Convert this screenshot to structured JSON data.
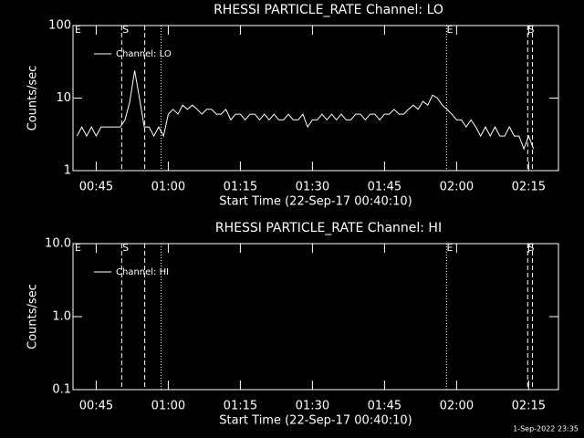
{
  "chart_data": [
    {
      "type": "line",
      "title": "RHESSI PARTICLE_RATE Channel: LO",
      "xlabel": "Start Time (22-Sep-17 00:40:10)",
      "ylabel": "Counts/sec",
      "yscale": "log",
      "ylim": [
        1,
        100
      ],
      "yticks": [
        1,
        10,
        100
      ],
      "xlim": [
        40.17,
        141.2
      ],
      "xticks": [
        {
          "value": 45,
          "label": "00:45"
        },
        {
          "value": 60,
          "label": "01:00"
        },
        {
          "value": 75,
          "label": "01:15"
        },
        {
          "value": 90,
          "label": "01:30"
        },
        {
          "value": 105,
          "label": "01:45"
        },
        {
          "value": 120,
          "label": "02:00"
        },
        {
          "value": 135,
          "label": "02:15"
        }
      ],
      "series": [
        {
          "name": "Channel: LO",
          "color": "#ffffff",
          "x": [
            41,
            42,
            43,
            44,
            45,
            46,
            47,
            48,
            49,
            50,
            51,
            52,
            53,
            54,
            55,
            56,
            57,
            58,
            59,
            60,
            61,
            62,
            63,
            64,
            65,
            66,
            67,
            68,
            69,
            70,
            71,
            72,
            73,
            74,
            75,
            76,
            77,
            78,
            79,
            80,
            81,
            82,
            83,
            84,
            85,
            86,
            87,
            88,
            89,
            90,
            91,
            92,
            93,
            94,
            95,
            96,
            97,
            98,
            99,
            100,
            101,
            102,
            103,
            104,
            105,
            106,
            107,
            108,
            109,
            110,
            111,
            112,
            113,
            114,
            115,
            116,
            117,
            118,
            119,
            120,
            121,
            122,
            123,
            124,
            125,
            126,
            127,
            128,
            129,
            130,
            131,
            132,
            133,
            134,
            135,
            136
          ],
          "values": [
            3,
            4,
            3,
            4,
            3,
            4,
            4,
            4,
            4,
            4,
            5,
            9,
            24,
            10,
            4,
            4,
            3,
            4,
            3,
            6,
            7,
            6,
            8,
            7,
            8,
            7,
            6,
            7,
            7,
            6,
            6,
            7,
            5,
            6,
            6,
            5,
            6,
            6,
            5,
            6,
            5,
            6,
            5,
            5,
            6,
            5,
            5,
            6,
            4,
            5,
            5,
            6,
            5,
            6,
            5,
            6,
            5,
            5,
            6,
            6,
            5,
            6,
            6,
            5,
            6,
            6,
            7,
            6,
            6,
            7,
            8,
            7,
            9,
            8,
            11,
            10,
            8,
            7,
            6,
            5,
            5,
            4,
            5,
            4,
            3,
            4,
            3,
            4,
            3,
            3,
            4,
            3,
            3,
            2,
            3,
            2
          ]
        }
      ],
      "vlines": [
        {
          "x": 50.3,
          "style": "dashed"
        },
        {
          "x": 55.1,
          "style": "dashed"
        },
        {
          "x": 58.5,
          "style": "dotted"
        },
        {
          "x": 117.9,
          "style": "dotted"
        },
        {
          "x": 134.8,
          "style": "dashed"
        },
        {
          "x": 135.8,
          "style": "dashed"
        }
      ],
      "annotations": [
        {
          "x": 41.2,
          "text": "E"
        },
        {
          "x": 51.1,
          "text": "S"
        },
        {
          "x": 118.6,
          "text": "E"
        },
        {
          "x": 135.5,
          "text": "S"
        }
      ]
    },
    {
      "type": "line",
      "title": "RHESSI PARTICLE_RATE Channel: HI",
      "xlabel": "Start Time (22-Sep-17 00:40:10)",
      "ylabel": "Counts/sec",
      "yscale": "log",
      "ylim": [
        0.1,
        10
      ],
      "yticks": [
        0.1,
        {
          "value": 1,
          "label": "1.0"
        },
        {
          "value": 10,
          "label": "10.0"
        }
      ],
      "xlim": [
        40.17,
        141.2
      ],
      "xticks": [
        {
          "value": 45,
          "label": "00:45"
        },
        {
          "value": 60,
          "label": "01:00"
        },
        {
          "value": 75,
          "label": "01:15"
        },
        {
          "value": 90,
          "label": "01:30"
        },
        {
          "value": 105,
          "label": "01:45"
        },
        {
          "value": 120,
          "label": "02:00"
        },
        {
          "value": 135,
          "label": "02:15"
        }
      ],
      "series": [
        {
          "name": "Channel: HI",
          "color": "#ffffff",
          "x": [],
          "values": []
        }
      ],
      "vlines": [
        {
          "x": 50.3,
          "style": "dashed"
        },
        {
          "x": 55.1,
          "style": "dashed"
        },
        {
          "x": 58.5,
          "style": "dotted"
        },
        {
          "x": 117.9,
          "style": "dotted"
        },
        {
          "x": 134.8,
          "style": "dashed"
        },
        {
          "x": 135.8,
          "style": "dashed"
        }
      ],
      "annotations": [
        {
          "x": 41.2,
          "text": "E"
        },
        {
          "x": 51.1,
          "text": "S"
        },
        {
          "x": 118.6,
          "text": "E"
        },
        {
          "x": 135.5,
          "text": "S"
        }
      ]
    }
  ],
  "footer": "1-Sep-2022 23:35"
}
